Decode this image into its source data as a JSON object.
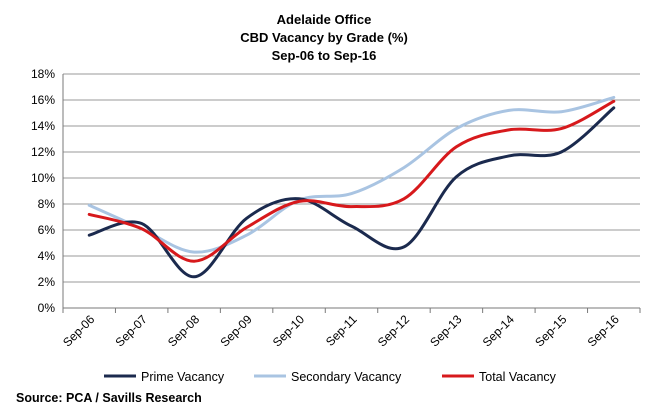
{
  "chart_data": {
    "type": "line",
    "title": [
      "Adelaide Office",
      "CBD Vacancy by Grade (%)",
      "Sep-06 to Sep-16"
    ],
    "categories": [
      "Sep-06",
      "Sep-07",
      "Sep-08",
      "Sep-09",
      "Sep-10",
      "Sep-11",
      "Sep-12",
      "Sep-13",
      "Sep-14",
      "Sep-15",
      "Sep-16"
    ],
    "ylim": [
      0,
      18
    ],
    "yticks": [
      "0%",
      "2%",
      "4%",
      "6%",
      "8%",
      "10%",
      "12%",
      "14%",
      "16%",
      "18%"
    ],
    "grid": true,
    "legend_position": "bottom",
    "series": [
      {
        "name": "Prime Vacancy",
        "color": "#1b2a4e",
        "values": [
          5.6,
          6.5,
          2.4,
          6.9,
          8.4,
          6.3,
          4.7,
          10.1,
          11.7,
          12.0,
          15.4
        ]
      },
      {
        "name": "Secondary Vacancy",
        "color": "#a9c4e2",
        "values": [
          7.9,
          6.1,
          4.3,
          5.6,
          8.3,
          8.8,
          10.8,
          13.8,
          15.2,
          15.1,
          16.2
        ]
      },
      {
        "name": "Total Vacancy",
        "color": "#d7191c",
        "values": [
          7.2,
          6.1,
          3.6,
          6.2,
          8.2,
          7.8,
          8.4,
          12.4,
          13.7,
          13.8,
          15.9
        ]
      }
    ],
    "source": "Source: PCA / Savills Research"
  }
}
